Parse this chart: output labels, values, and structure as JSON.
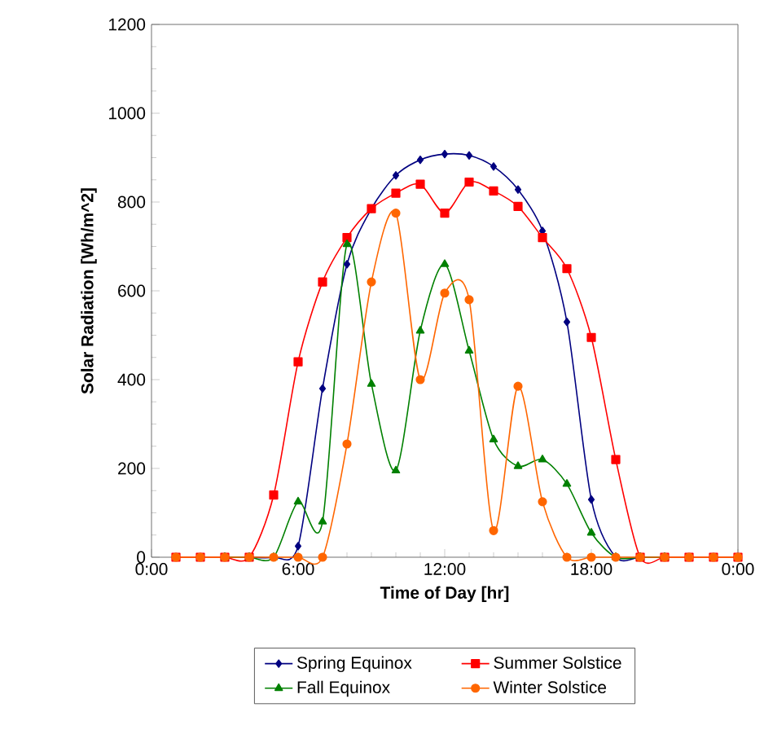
{
  "chart_data": {
    "type": "line",
    "xlabel": "Time of Day [hr]",
    "ylabel": "Solar Radiation [Wh/m^2]",
    "x": [
      1,
      2,
      3,
      4,
      5,
      6,
      7,
      8,
      9,
      10,
      11,
      12,
      13,
      14,
      15,
      16,
      17,
      18,
      19,
      20,
      21,
      22,
      23,
      24
    ],
    "series": [
      {
        "name": "Spring Equinox",
        "color": "#000080",
        "marker": "diamond",
        "values": [
          null,
          null,
          0,
          0,
          0,
          25,
          380,
          660,
          785,
          860,
          895,
          908,
          905,
          880,
          828,
          735,
          530,
          130,
          0,
          0,
          0,
          null,
          null,
          null
        ]
      },
      {
        "name": "Summer Solstice",
        "color": "#ff0000",
        "marker": "square",
        "values": [
          0,
          0,
          0,
          0,
          140,
          440,
          620,
          720,
          785,
          820,
          840,
          775,
          845,
          825,
          790,
          720,
          650,
          495,
          220,
          0,
          0,
          0,
          0,
          0
        ]
      },
      {
        "name": "Fall Equinox",
        "color": "#008000",
        "marker": "triangle",
        "values": [
          null,
          null,
          0,
          0,
          0,
          125,
          80,
          705,
          390,
          195,
          510,
          660,
          465,
          265,
          205,
          220,
          165,
          55,
          0,
          0,
          0,
          null,
          null,
          null
        ]
      },
      {
        "name": "Winter Solstice",
        "color": "#ff6600",
        "marker": "circle",
        "values": [
          0,
          0,
          0,
          0,
          0,
          0,
          0,
          255,
          620,
          775,
          400,
          595,
          580,
          60,
          385,
          125,
          0,
          0,
          0,
          0,
          0,
          0,
          0,
          0
        ]
      }
    ],
    "xlim": [
      0,
      24
    ],
    "xticks": [
      {
        "value": 0,
        "label": "0:00"
      },
      {
        "value": 6,
        "label": "6:00"
      },
      {
        "value": 12,
        "label": "12:00"
      },
      {
        "value": 18,
        "label": "18:00"
      },
      {
        "value": 24,
        "label": "0:00"
      }
    ],
    "ylim": [
      0,
      1200
    ],
    "yticks": [
      0,
      200,
      400,
      600,
      800,
      1000,
      1200
    ],
    "legend": "bottom",
    "grid": false
  }
}
